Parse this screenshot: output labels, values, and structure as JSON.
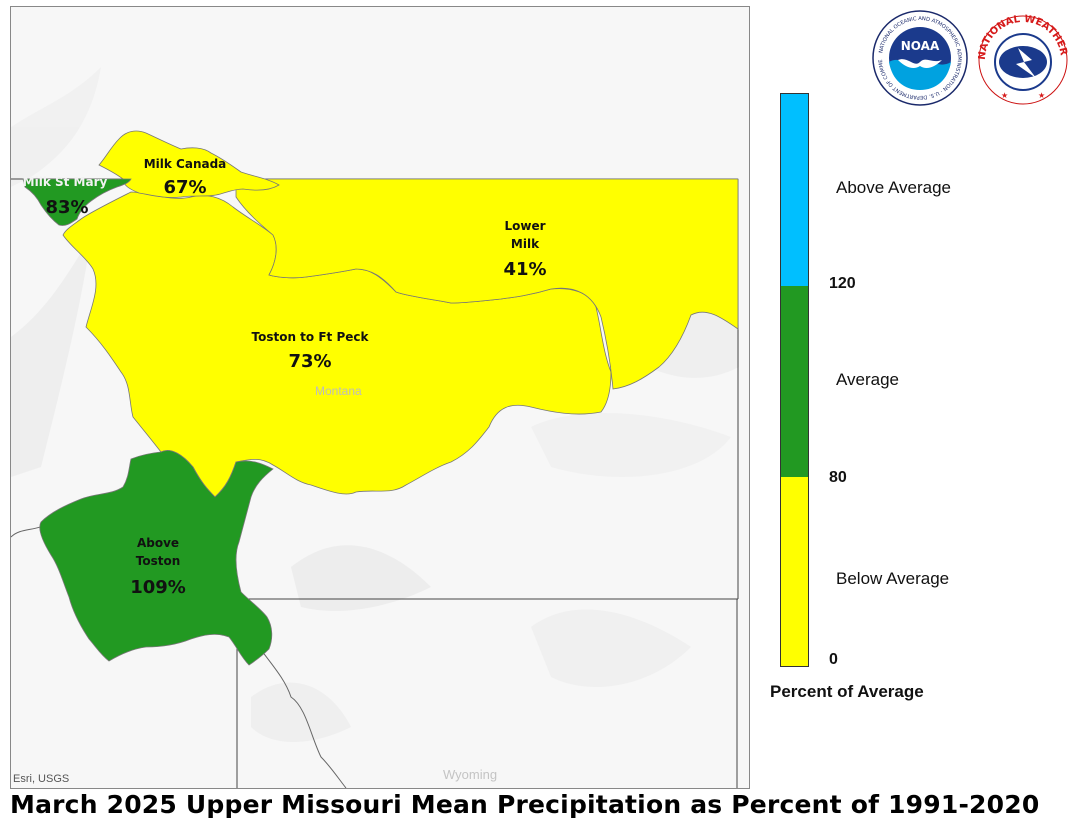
{
  "title": "March 2025 Upper Missouri Mean Precipitation as Percent of 1991-2020",
  "map": {
    "attribution": "Esri, USGS",
    "state_labels": {
      "montana": "Montana",
      "wyoming": "Wyoming"
    },
    "basins": [
      {
        "id": "milk-st-mary",
        "name": "Milk St Mary",
        "percent": "83%",
        "category": "average"
      },
      {
        "id": "milk-canada",
        "name": "Milk Canada",
        "percent": "67%",
        "category": "below"
      },
      {
        "id": "lower-milk",
        "name_line1": "Lower",
        "name_line2": "Milk",
        "percent": "41%",
        "category": "below"
      },
      {
        "id": "toston-ft-peck",
        "name": "Toston to Ft Peck",
        "percent": "73%",
        "category": "below"
      },
      {
        "id": "above-toston",
        "name_line1": "Above",
        "name_line2": "Toston",
        "percent": "109%",
        "category": "average"
      }
    ]
  },
  "legend": {
    "title": "Percent of Average",
    "categories": {
      "above": "Above Average",
      "average": "Average",
      "below": "Below Average"
    },
    "breaks": {
      "b120": "120",
      "b80": "80",
      "b0": "0"
    },
    "colors": {
      "above": "#00bfff",
      "average": "#229922",
      "below": "#ffff00"
    }
  },
  "logos": {
    "noaa": {
      "text": "NOAA",
      "ring": "NATIONAL OCEANIC AND ATMOSPHERIC ADMINISTRATION · U.S. DEPARTMENT OF COMMERCE"
    },
    "nws": {
      "ring": "NATIONAL WEATHER SERVICE"
    }
  }
}
